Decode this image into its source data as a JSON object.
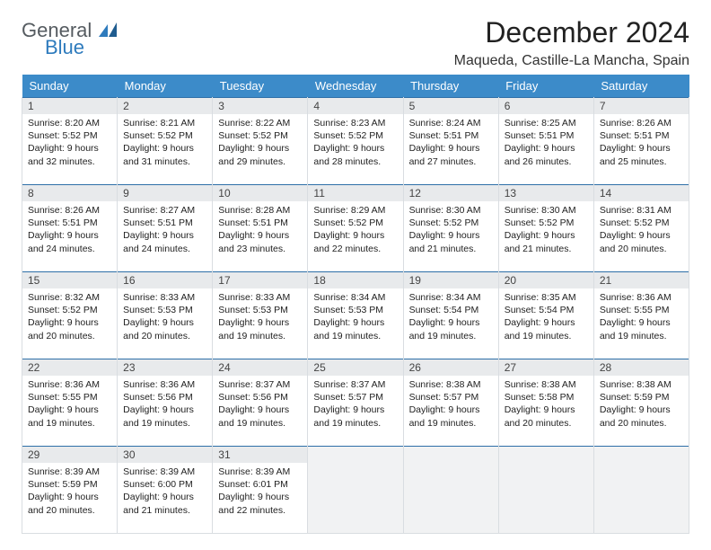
{
  "brand": {
    "word1": "General",
    "word2": "Blue"
  },
  "title": "December 2024",
  "location": "Maqueda, Castille-La Mancha, Spain",
  "colors": {
    "header_bg": "#3c8bc9",
    "header_text": "#ffffff",
    "row_divider": "#2e6fa8",
    "cell_border": "#d9dde1",
    "daynum_bg": "#e8eaec",
    "brand_gray": "#555b60",
    "brand_blue": "#2e7bbd"
  },
  "day_headers": [
    "Sunday",
    "Monday",
    "Tuesday",
    "Wednesday",
    "Thursday",
    "Friday",
    "Saturday"
  ],
  "weeks": [
    [
      {
        "n": "1",
        "sr": "8:20 AM",
        "ss": "5:52 PM",
        "dl": "9 hours and 32 minutes."
      },
      {
        "n": "2",
        "sr": "8:21 AM",
        "ss": "5:52 PM",
        "dl": "9 hours and 31 minutes."
      },
      {
        "n": "3",
        "sr": "8:22 AM",
        "ss": "5:52 PM",
        "dl": "9 hours and 29 minutes."
      },
      {
        "n": "4",
        "sr": "8:23 AM",
        "ss": "5:52 PM",
        "dl": "9 hours and 28 minutes."
      },
      {
        "n": "5",
        "sr": "8:24 AM",
        "ss": "5:51 PM",
        "dl": "9 hours and 27 minutes."
      },
      {
        "n": "6",
        "sr": "8:25 AM",
        "ss": "5:51 PM",
        "dl": "9 hours and 26 minutes."
      },
      {
        "n": "7",
        "sr": "8:26 AM",
        "ss": "5:51 PM",
        "dl": "9 hours and 25 minutes."
      }
    ],
    [
      {
        "n": "8",
        "sr": "8:26 AM",
        "ss": "5:51 PM",
        "dl": "9 hours and 24 minutes."
      },
      {
        "n": "9",
        "sr": "8:27 AM",
        "ss": "5:51 PM",
        "dl": "9 hours and 24 minutes."
      },
      {
        "n": "10",
        "sr": "8:28 AM",
        "ss": "5:51 PM",
        "dl": "9 hours and 23 minutes."
      },
      {
        "n": "11",
        "sr": "8:29 AM",
        "ss": "5:52 PM",
        "dl": "9 hours and 22 minutes."
      },
      {
        "n": "12",
        "sr": "8:30 AM",
        "ss": "5:52 PM",
        "dl": "9 hours and 21 minutes."
      },
      {
        "n": "13",
        "sr": "8:30 AM",
        "ss": "5:52 PM",
        "dl": "9 hours and 21 minutes."
      },
      {
        "n": "14",
        "sr": "8:31 AM",
        "ss": "5:52 PM",
        "dl": "9 hours and 20 minutes."
      }
    ],
    [
      {
        "n": "15",
        "sr": "8:32 AM",
        "ss": "5:52 PM",
        "dl": "9 hours and 20 minutes."
      },
      {
        "n": "16",
        "sr": "8:33 AM",
        "ss": "5:53 PM",
        "dl": "9 hours and 20 minutes."
      },
      {
        "n": "17",
        "sr": "8:33 AM",
        "ss": "5:53 PM",
        "dl": "9 hours and 19 minutes."
      },
      {
        "n": "18",
        "sr": "8:34 AM",
        "ss": "5:53 PM",
        "dl": "9 hours and 19 minutes."
      },
      {
        "n": "19",
        "sr": "8:34 AM",
        "ss": "5:54 PM",
        "dl": "9 hours and 19 minutes."
      },
      {
        "n": "20",
        "sr": "8:35 AM",
        "ss": "5:54 PM",
        "dl": "9 hours and 19 minutes."
      },
      {
        "n": "21",
        "sr": "8:36 AM",
        "ss": "5:55 PM",
        "dl": "9 hours and 19 minutes."
      }
    ],
    [
      {
        "n": "22",
        "sr": "8:36 AM",
        "ss": "5:55 PM",
        "dl": "9 hours and 19 minutes."
      },
      {
        "n": "23",
        "sr": "8:36 AM",
        "ss": "5:56 PM",
        "dl": "9 hours and 19 minutes."
      },
      {
        "n": "24",
        "sr": "8:37 AM",
        "ss": "5:56 PM",
        "dl": "9 hours and 19 minutes."
      },
      {
        "n": "25",
        "sr": "8:37 AM",
        "ss": "5:57 PM",
        "dl": "9 hours and 19 minutes."
      },
      {
        "n": "26",
        "sr": "8:38 AM",
        "ss": "5:57 PM",
        "dl": "9 hours and 19 minutes."
      },
      {
        "n": "27",
        "sr": "8:38 AM",
        "ss": "5:58 PM",
        "dl": "9 hours and 20 minutes."
      },
      {
        "n": "28",
        "sr": "8:38 AM",
        "ss": "5:59 PM",
        "dl": "9 hours and 20 minutes."
      }
    ],
    [
      {
        "n": "29",
        "sr": "8:39 AM",
        "ss": "5:59 PM",
        "dl": "9 hours and 20 minutes."
      },
      {
        "n": "30",
        "sr": "8:39 AM",
        "ss": "6:00 PM",
        "dl": "9 hours and 21 minutes."
      },
      {
        "n": "31",
        "sr": "8:39 AM",
        "ss": "6:01 PM",
        "dl": "9 hours and 22 minutes."
      },
      null,
      null,
      null,
      null
    ]
  ],
  "labels": {
    "sunrise": "Sunrise:",
    "sunset": "Sunset:",
    "daylight": "Daylight:"
  }
}
